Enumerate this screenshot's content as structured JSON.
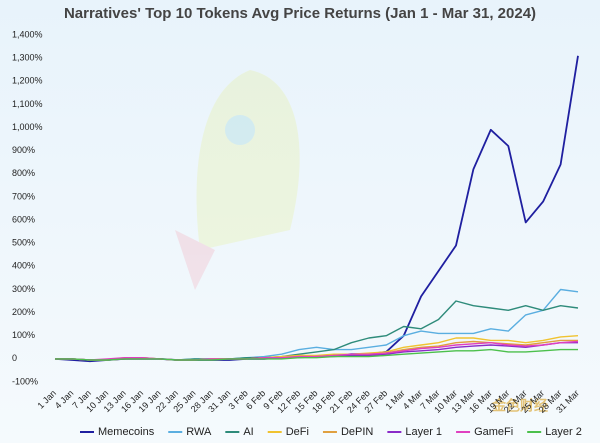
{
  "chart_data": {
    "type": "line",
    "title": "Narratives' Top 10 Tokens Avg Price Returns (Jan 1 - Mar 31, 2024)",
    "watermark": "金色财经",
    "categories": [
      "1 Jan",
      "4 Jan",
      "7 Jan",
      "10 Jan",
      "13 Jan",
      "16 Jan",
      "19 Jan",
      "22 Jan",
      "25 Jan",
      "28 Jan",
      "31 Jan",
      "3 Feb",
      "6 Feb",
      "9 Feb",
      "12 Feb",
      "15 Feb",
      "18 Feb",
      "21 Feb",
      "24 Feb",
      "27 Feb",
      "1 Mar",
      "4 Mar",
      "7 Mar",
      "10 Mar",
      "13 Mar",
      "16 Mar",
      "19 Mar",
      "22 Mar",
      "25 Mar",
      "28 Mar",
      "31 Mar"
    ],
    "series": [
      {
        "name": "Memecoins",
        "color": "#1f1fa0",
        "values": [
          0,
          -5,
          -10,
          -5,
          0,
          0,
          0,
          -5,
          -5,
          -5,
          -5,
          0,
          0,
          5,
          10,
          10,
          15,
          20,
          20,
          30,
          100,
          270,
          380,
          490,
          820,
          990,
          920,
          590,
          680,
          840,
          1310
        ]
      },
      {
        "name": "RWA",
        "color": "#5aaee0",
        "values": [
          0,
          0,
          -5,
          -5,
          0,
          0,
          0,
          -5,
          0,
          0,
          0,
          5,
          10,
          20,
          40,
          50,
          40,
          40,
          50,
          60,
          100,
          120,
          110,
          110,
          110,
          130,
          120,
          190,
          210,
          300,
          290
        ]
      },
      {
        "name": "AI",
        "color": "#2e8b7a",
        "values": [
          0,
          0,
          -5,
          -5,
          0,
          5,
          0,
          -5,
          0,
          0,
          0,
          5,
          5,
          10,
          20,
          30,
          40,
          70,
          90,
          100,
          140,
          130,
          170,
          250,
          230,
          220,
          210,
          230,
          210,
          230,
          220
        ]
      },
      {
        "name": "DeFi",
        "color": "#f0c330",
        "values": [
          0,
          0,
          -5,
          -5,
          5,
          5,
          0,
          -5,
          -5,
          0,
          0,
          0,
          5,
          10,
          15,
          15,
          20,
          20,
          25,
          30,
          50,
          60,
          70,
          90,
          90,
          80,
          80,
          70,
          80,
          95,
          100
        ]
      },
      {
        "name": "DePIN",
        "color": "#e0a040",
        "values": [
          0,
          0,
          -5,
          -5,
          0,
          0,
          0,
          -5,
          -5,
          0,
          0,
          0,
          5,
          5,
          10,
          10,
          15,
          15,
          20,
          25,
          40,
          50,
          55,
          70,
          75,
          70,
          65,
          60,
          70,
          80,
          80
        ]
      },
      {
        "name": "Layer 1",
        "color": "#8a2bc8",
        "values": [
          0,
          0,
          -5,
          -5,
          0,
          0,
          0,
          -5,
          -5,
          -5,
          0,
          0,
          0,
          5,
          5,
          10,
          10,
          15,
          15,
          20,
          30,
          35,
          40,
          50,
          55,
          60,
          55,
          50,
          60,
          70,
          70
        ]
      },
      {
        "name": "GameFi",
        "color": "#e040c0",
        "values": [
          0,
          0,
          -5,
          0,
          5,
          5,
          0,
          -5,
          -5,
          0,
          0,
          0,
          5,
          5,
          10,
          10,
          15,
          20,
          20,
          25,
          35,
          45,
          50,
          60,
          65,
          70,
          60,
          55,
          60,
          70,
          75
        ]
      },
      {
        "name": "Layer 2",
        "color": "#4cc04c",
        "values": [
          0,
          0,
          -5,
          -5,
          0,
          0,
          0,
          -5,
          -5,
          -5,
          0,
          0,
          0,
          0,
          5,
          5,
          10,
          10,
          10,
          15,
          20,
          25,
          30,
          35,
          35,
          40,
          30,
          30,
          35,
          40,
          40
        ]
      }
    ],
    "ylim": [
      -100,
      1400
    ],
    "yticks": [
      {
        "value": -100,
        "label": "-100%"
      },
      0,
      {
        "value": 100,
        "label": "100%"
      },
      {
        "value": 200,
        "label": "200%"
      },
      {
        "value": 300,
        "label": "300%"
      },
      {
        "value": 400,
        "label": "400%"
      },
      {
        "value": 500,
        "label": "500%"
      },
      {
        "value": 600,
        "label": "600%"
      },
      {
        "value": 700,
        "label": "700%"
      },
      {
        "value": 800,
        "label": "800%"
      },
      {
        "value": 900,
        "label": "900%"
      },
      {
        "value": 1000,
        "label": "1,000%"
      },
      {
        "value": 1100,
        "label": "1,100%"
      },
      {
        "value": 1200,
        "label": "1,200%"
      },
      {
        "value": 1300,
        "label": "1,300%"
      },
      {
        "value": 1400,
        "label": "1,400%"
      }
    ],
    "grid": false,
    "legend": "bottom"
  }
}
